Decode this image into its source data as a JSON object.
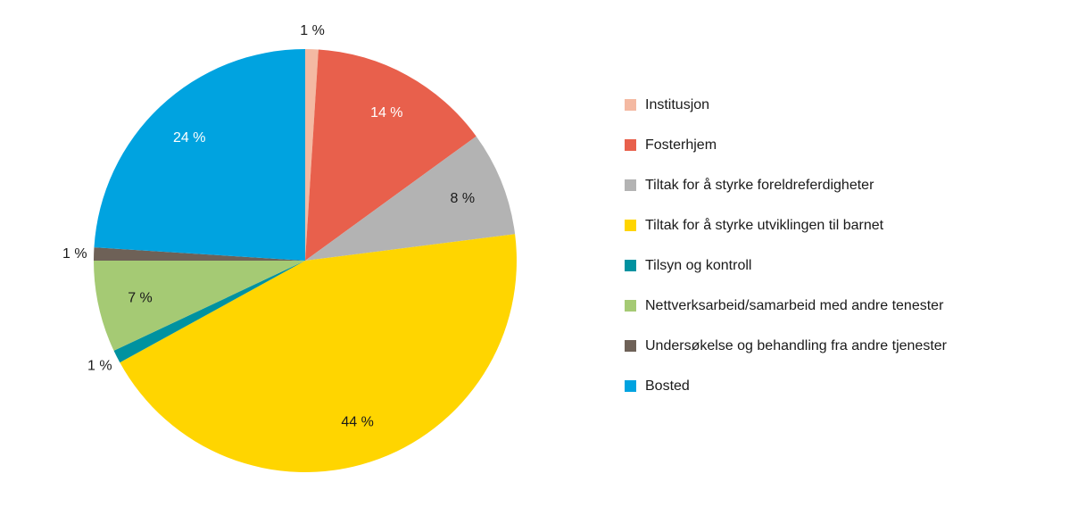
{
  "chart_data": {
    "type": "pie",
    "title": "",
    "unit": "%",
    "legend_position": "right",
    "start_angle_deg": 0,
    "direction": "clockwise",
    "slices": [
      {
        "label": "Institusjon",
        "value": 1,
        "color": "#F4B9A2"
      },
      {
        "label": "Fosterhjem",
        "value": 14,
        "color": "#E8604C"
      },
      {
        "label": "Tiltak for å styrke foreldreferdigheter",
        "value": 8,
        "color": "#B3B3B3"
      },
      {
        "label": "Tiltak for å styrke utviklingen til barnet",
        "value": 44,
        "color": "#FFD500"
      },
      {
        "label": "Tilsyn og kontroll",
        "value": 1,
        "color": "#0092A0"
      },
      {
        "label": "Nettverksarbeid/samarbeid med andre tenester",
        "value": 7,
        "color": "#A5CA74"
      },
      {
        "label": "Undersøkelse og behandling fra andre tjenester",
        "value": 1,
        "color": "#6E6157"
      },
      {
        "label": "Bosted",
        "value": 24,
        "color": "#00A3E0"
      }
    ],
    "data_labels": [
      "1 %",
      "14 %",
      "8 %",
      "44 %",
      "1 %",
      "7 %",
      "1 %",
      "24 %"
    ],
    "label_text_dark": "#1a1a1a",
    "label_text_light": "#ffffff"
  }
}
